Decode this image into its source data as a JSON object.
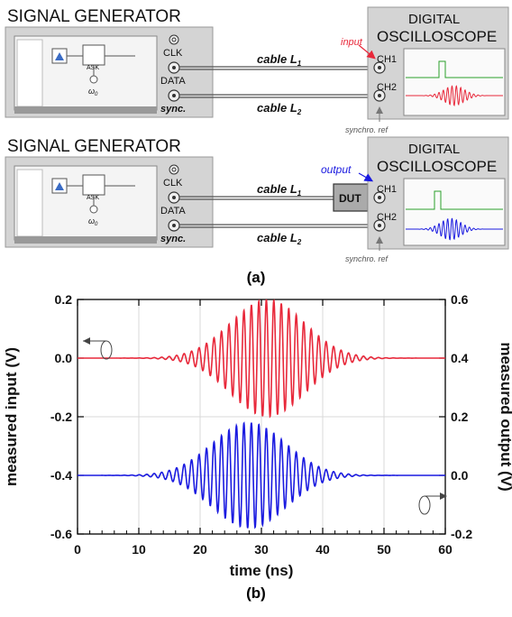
{
  "setup": {
    "generator_title": "SIGNAL GENERATOR",
    "oscilloscope_title_line1": "DIGITAL",
    "oscilloscope_title_line2": "OSCILLOSCOPE",
    "ports": {
      "clk": "CLK",
      "data": "DATA",
      "sync": "sync."
    },
    "channels": {
      "ch1": "CH1",
      "ch2": "CH2"
    },
    "cable_1": "cable L",
    "cable_1_sub": "1",
    "cable_2": "cable L",
    "cable_2_sub": "2",
    "input_label": "input",
    "output_label": "output",
    "dut_label": "DUT",
    "sync_ref": "synchro. ref",
    "ask_label": "ASK",
    "omega_label": "ω",
    "omega_sub": "0",
    "panel_label_a": "(a)",
    "colors": {
      "input": "#e8283a",
      "output": "#1a1ae0",
      "trigger": "#2aa02a",
      "panel": "#d4d4d4"
    }
  },
  "chart_data": {
    "type": "line",
    "panel_label": "(b)",
    "xlabel": "time (ns)",
    "ylabel_left": "measured input (V)",
    "ylabel_right": "measured output (V)",
    "xlim": [
      0,
      60
    ],
    "ylim_left": [
      -0.6,
      0.2
    ],
    "ylim_right": [
      -0.2,
      0.6
    ],
    "x_ticks": [
      "0",
      "10",
      "20",
      "30",
      "40",
      "50",
      "60"
    ],
    "y_ticks_left": [
      "0.2",
      "0.0",
      "-0.2",
      "-0.4",
      "-0.6"
    ],
    "y_ticks_right": [
      "0.6",
      "0.4",
      "0.2",
      "0.0",
      "-0.2"
    ],
    "grid": true,
    "series": [
      {
        "axis": "left",
        "color": "#e8283a",
        "offset": 0.0,
        "center_ns": 31,
        "width_ns": 8.5,
        "amplitude": 0.2,
        "period_ns": 1.22
      },
      {
        "axis": "right",
        "color": "#1a1ae0",
        "offset": 0.0,
        "center_ns": 28,
        "width_ns": 8.5,
        "amplitude": 0.18,
        "period_ns": 1.22
      }
    ]
  }
}
